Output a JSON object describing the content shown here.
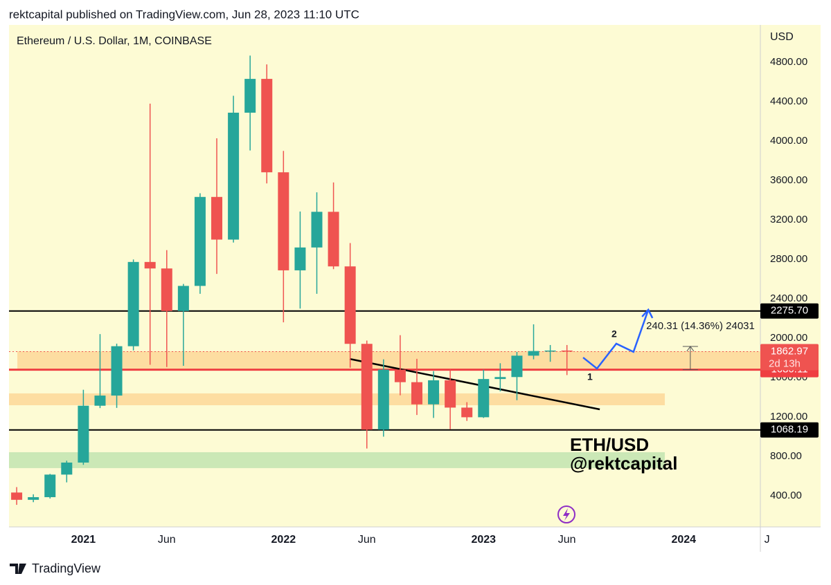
{
  "header": "rektcapital published on TradingView.com, Jun 28, 2023 11:10 UTC",
  "footer": "TradingView",
  "chart_data": {
    "type": "candlestick",
    "title": "Ethereum / U.S. Dollar, 1M, COINBASE",
    "y_axis_label": "USD",
    "x": [
      0,
      1,
      2,
      3,
      4,
      5,
      6,
      7,
      8,
      9,
      10,
      11,
      12,
      13,
      14,
      15,
      16,
      17,
      18,
      19,
      20,
      21,
      22,
      23,
      24,
      25,
      26,
      27,
      28,
      29,
      30,
      31,
      32,
      33
    ],
    "open": [
      433,
      359,
      386,
      615,
      737,
      1314,
      1417,
      1918,
      2773,
      2707,
      2275,
      2530,
      3433,
      3000,
      4288,
      4631,
      3683,
      2688,
      2920,
      3282,
      2728,
      1942,
      1071,
      1680,
      1553,
      1328,
      1572,
      1295,
      1197,
      1585,
      1605,
      1822,
      1869,
      1874
    ],
    "high": [
      488,
      415,
      622,
      756,
      1476,
      2041,
      1944,
      2798,
      4380,
      2893,
      2550,
      3470,
      4028,
      4460,
      4868,
      4778,
      3900,
      3285,
      3480,
      3580,
      2965,
      1975,
      1785,
      2030,
      1790,
      1665,
      1680,
      1350,
      1680,
      1745,
      1860,
      2140,
      1930,
      1930
    ],
    "low": [
      308,
      335,
      372,
      536,
      714,
      1290,
      1292,
      1875,
      1730,
      1707,
      1719,
      2450,
      2652,
      2970,
      3904,
      3570,
      2160,
      2300,
      2450,
      2700,
      1700,
      880,
      1000,
      1420,
      1220,
      1190,
      1075,
      1160,
      1190,
      1460,
      1370,
      1785,
      1760,
      1625
    ],
    "close": [
      359,
      386,
      615,
      737,
      1314,
      1417,
      1918,
      2773,
      2707,
      2275,
      2530,
      3433,
      3000,
      4288,
      4631,
      3683,
      2688,
      2920,
      3282,
      2728,
      1942,
      1071,
      1680,
      1553,
      1328,
      1572,
      1295,
      1197,
      1585,
      1605,
      1822,
      1869,
      1874,
      1862.97
    ],
    "up_color": "#26a69a",
    "down_color": "#ef5350",
    "xlim": [
      -0.46,
      44.6
    ],
    "xticks": [
      {
        "value": 4,
        "label": "2021"
      },
      {
        "value": 9,
        "label": "Jun"
      },
      {
        "value": 16,
        "label": "2022"
      },
      {
        "value": 21,
        "label": "Jun"
      },
      {
        "value": 28,
        "label": "2023"
      },
      {
        "value": 33,
        "label": "Jun"
      },
      {
        "value": 40,
        "label": "2024"
      },
      {
        "value": 45,
        "label": "J"
      }
    ],
    "ylim": [
      84,
      5179
    ],
    "yticks": [
      {
        "value": 400,
        "label": "400.00"
      },
      {
        "value": 800,
        "label": "800.00"
      },
      {
        "value": 1200,
        "label": "1200.00"
      },
      {
        "value": 1600,
        "label": "1600.00"
      },
      {
        "value": 2000,
        "label": "2000.00"
      },
      {
        "value": 2400,
        "label": "2400.00"
      },
      {
        "value": 2800,
        "label": "2800.00"
      },
      {
        "value": 3200,
        "label": "3200.00"
      },
      {
        "value": 3600,
        "label": "3600.00"
      },
      {
        "value": 4000,
        "label": "4000.00"
      },
      {
        "value": 4400,
        "label": "4400.00"
      },
      {
        "value": 4800,
        "label": "4800.00"
      }
    ],
    "zones": [
      {
        "from": 1690,
        "to": 1867,
        "x": [
          0.04,
          44.6
        ],
        "color": "#fdd99b"
      },
      {
        "from": 1319,
        "to": 1439,
        "x": [
          -0.46,
          38.87
        ],
        "color": "#fdd99b"
      },
      {
        "from": 681,
        "to": 842,
        "x": [
          -0.46,
          38.87
        ],
        "color": "#c5e6b3"
      }
    ],
    "levels": [
      {
        "price": {
          "value": 2275.7,
          "label": "2275.70"
        },
        "color": "#000000"
      },
      {
        "price": 1068.19,
        "color": "#000000"
      },
      {
        "price": 1680.11,
        "color": "#ef3e42"
      },
      {
        "price": 1862.97,
        "color": "#ef5350",
        "countdown": "2d 13h",
        "dotted": true
      }
    ],
    "trendline": {
      "x": [
        19.97,
        34.97
      ],
      "y": [
        1789,
        1277
      ],
      "color": "#000000"
    },
    "projection": {
      "x": [
        33.97,
        34.8,
        35.96,
        36.99,
        37.88
      ],
      "y": [
        1803,
        1691,
        1944,
        1860,
        2288
      ],
      "color": "#2962ff",
      "labels": [
        "1",
        "2"
      ]
    },
    "measure": {
      "x": 40.4,
      "from": 1680.11,
      "to": 1916,
      "text": "240.31 (14.36%) 24031"
    },
    "watermark": [
      "ETH/USD",
      "@rektcapital"
    ]
  }
}
